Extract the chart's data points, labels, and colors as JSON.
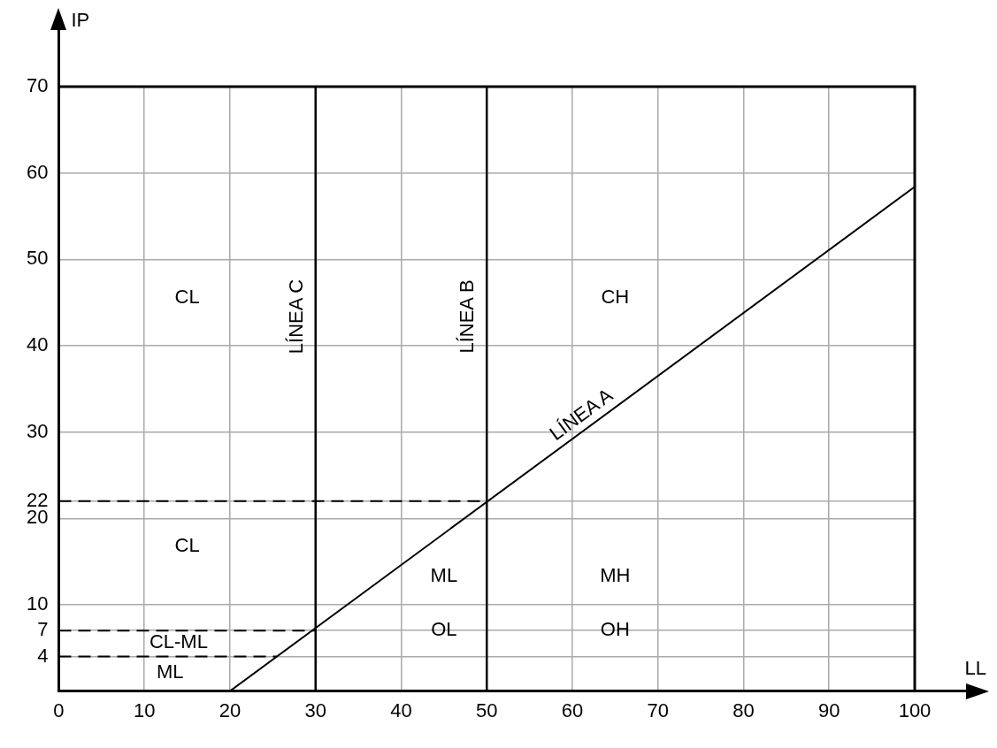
{
  "chart_data": {
    "type": "line",
    "xlabel": "LL",
    "ylabel": "IP",
    "xlim": [
      0,
      100
    ],
    "ylim": [
      0,
      70
    ],
    "xticks": [
      0,
      10,
      20,
      30,
      40,
      50,
      60,
      70,
      80,
      90,
      100
    ],
    "yticks": [
      4,
      7,
      10,
      20,
      22,
      30,
      40,
      50,
      60,
      70
    ],
    "grid": true,
    "legend": false,
    "marker": "none",
    "series": [
      {
        "color": "#000000",
        "line_style": "solid",
        "x": [
          20,
          100
        ],
        "values": [
          0,
          58.4
        ]
      },
      {
        "color": "#000000",
        "line_style": "dashed",
        "x": [
          0,
          50
        ],
        "values": [
          22,
          22
        ]
      },
      {
        "color": "#000000",
        "line_style": "dashed",
        "x": [
          0,
          30
        ],
        "values": [
          7,
          7
        ]
      },
      {
        "color": "#000000",
        "line_style": "dashed",
        "x": [
          0,
          25.5
        ],
        "values": [
          4,
          4
        ]
      }
    ],
    "ref_lines": [
      {
        "axis": "x",
        "value": 30,
        "label": "LÍNEA C",
        "color": "#000000"
      },
      {
        "axis": "x",
        "value": 50,
        "label": "LÍNEA B",
        "color": "#000000"
      }
    ],
    "annotations": [
      "CL",
      "CL",
      "CL-ML",
      "ML",
      "ML",
      "OL",
      "CH",
      "MH",
      "OH",
      {
        "text": "LÍNEA A",
        "x": 62,
        "y": 30.66
      }
    ]
  }
}
